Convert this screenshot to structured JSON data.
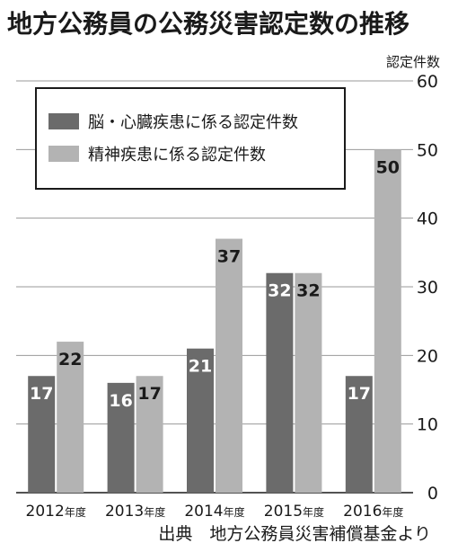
{
  "chart_data": {
    "type": "bar",
    "title": "地方公務員の公務災害認定数の推移",
    "ylabel": "認定件数",
    "categories": [
      "2012",
      "2013",
      "2014",
      "2015",
      "2016"
    ],
    "category_suffix": "年度",
    "series": [
      {
        "name": "脳・心臓疾患に係る認定件数",
        "values": [
          17,
          16,
          21,
          32,
          17
        ],
        "color": "#6b6b6b"
      },
      {
        "name": "精神疾患に係る認定件数",
        "values": [
          22,
          17,
          37,
          32,
          50
        ],
        "color": "#b3b3b3"
      }
    ],
    "ylim": [
      0,
      60
    ],
    "yticks": [
      0,
      10,
      20,
      30,
      40,
      50,
      60
    ],
    "grid": true,
    "legend": "top-left",
    "source": "出典　地方公務員災害補償基金より"
  }
}
